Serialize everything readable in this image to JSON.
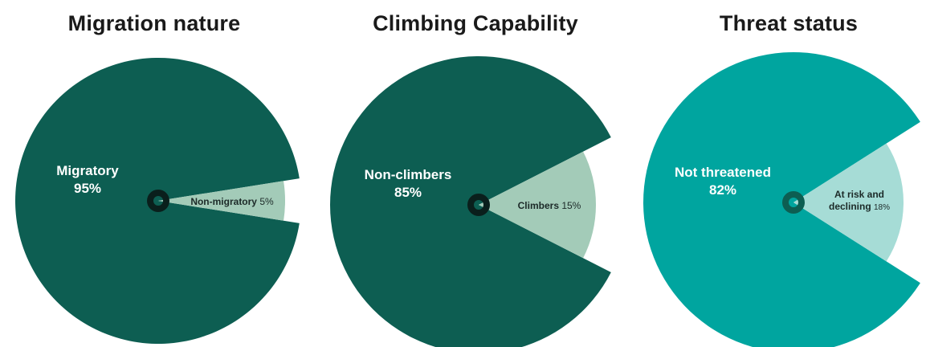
{
  "chart_data": [
    {
      "type": "pie",
      "title": "Migration nature",
      "slices": [
        {
          "label": "Migratory",
          "value": 95,
          "value_text": "95%"
        },
        {
          "label": "Non-migratory",
          "value": 5,
          "value_text": "5%"
        }
      ],
      "colors": [
        "#0d5e52",
        "#a3cbb8"
      ],
      "center_ring_color": "#0a1f1c"
    },
    {
      "type": "pie",
      "title": "Climbing Capability",
      "slices": [
        {
          "label": "Non-climbers",
          "value": 85,
          "value_text": "85%"
        },
        {
          "label": "Climbers",
          "value": 15,
          "value_text": "15%"
        }
      ],
      "colors": [
        "#0d5e52",
        "#a3cbb8"
      ],
      "center_ring_color": "#0a1f1c"
    },
    {
      "type": "pie",
      "title": "Threat status",
      "slices": [
        {
          "label": "Not threatened",
          "value": 82,
          "value_text": "82%"
        },
        {
          "label": "At risk and declining",
          "label_lines": [
            "At risk and",
            "declining"
          ],
          "value": 18,
          "value_text": "18%"
        }
      ],
      "colors": [
        "#00a59f",
        "#a6dcd6"
      ],
      "center_ring_color": "#0d5e52"
    }
  ]
}
